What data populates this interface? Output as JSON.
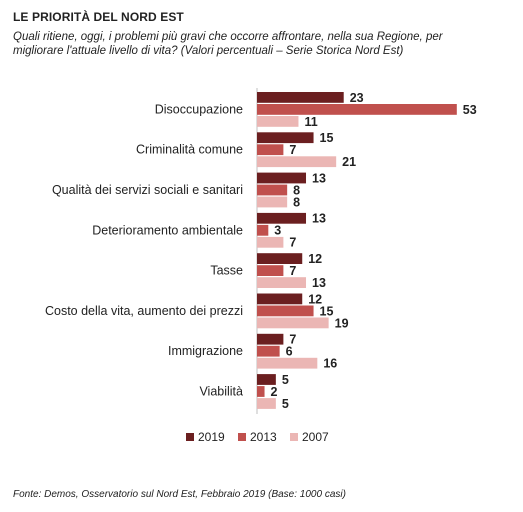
{
  "header": {
    "title": "LE PRIORITÀ DEL NORD EST",
    "subtitle": "Quali ritiene, oggi, i problemi più gravi che occorre affrontare, nella sua Regione, per migliorare l'attuale livello di vita? (Valori percentuali – Serie Storica Nord Est)"
  },
  "footer": {
    "source": "Fonte: Demos, Osservatorio sul Nord Est, Febbraio 2019 (Base: 1000 casi)"
  },
  "colors": {
    "2019": "#6b1f20",
    "2013": "#c0504d",
    "2007": "#ebb6b4"
  },
  "chart_data": {
    "type": "bar",
    "orientation": "horizontal",
    "categories": [
      "Disoccupazione",
      "Criminalità comune",
      "Qualità dei servizi sociali e sanitari",
      "Deterioramento ambientale",
      "Tasse",
      "Costo della vita, aumento dei prezzi",
      "Immigrazione",
      "Viabilità"
    ],
    "series": [
      {
        "name": "2019",
        "values": [
          23,
          15,
          13,
          13,
          12,
          12,
          7,
          5
        ]
      },
      {
        "name": "2013",
        "values": [
          53,
          7,
          8,
          3,
          7,
          15,
          6,
          2
        ]
      },
      {
        "name": "2007",
        "values": [
          11,
          21,
          8,
          7,
          13,
          19,
          16,
          5
        ]
      }
    ],
    "xlim": [
      0,
      53
    ],
    "grid": false,
    "legend": "bottom"
  }
}
